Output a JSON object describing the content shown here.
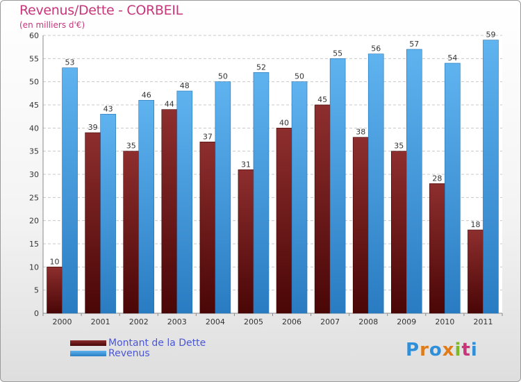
{
  "chart_data": {
    "type": "bar",
    "title": "Revenus/Dette - CORBEIL",
    "subtitle": "(en milliers d'€)",
    "categories": [
      "2000",
      "2001",
      "2002",
      "2003",
      "2004",
      "2005",
      "2006",
      "2007",
      "2008",
      "2009",
      "2010",
      "2011"
    ],
    "series": [
      {
        "name": "Montant de la Dette",
        "color": "#7a1a1a",
        "values": [
          10,
          39,
          35,
          44,
          37,
          31,
          40,
          45,
          38,
          35,
          28,
          18
        ]
      },
      {
        "name": "Revenus",
        "color": "#3f9be0",
        "values": [
          53,
          43,
          46,
          48,
          50,
          52,
          50,
          55,
          56,
          57,
          54,
          59
        ]
      }
    ],
    "ylim": [
      0,
      60
    ],
    "yticks": [
      0,
      5,
      10,
      15,
      20,
      25,
      30,
      35,
      40,
      45,
      50,
      55,
      60
    ],
    "grid": true,
    "legend_position": "bottom-left",
    "data_labels": true
  },
  "logo": {
    "text": "Proxiti",
    "icon": "proxiti-logo",
    "letter_colors": [
      "#2f8fd8",
      "#e07b1a",
      "#2f8fd8",
      "#e07b1a",
      "#7cb828",
      "#c8357a",
      "#2f8fd8"
    ]
  }
}
